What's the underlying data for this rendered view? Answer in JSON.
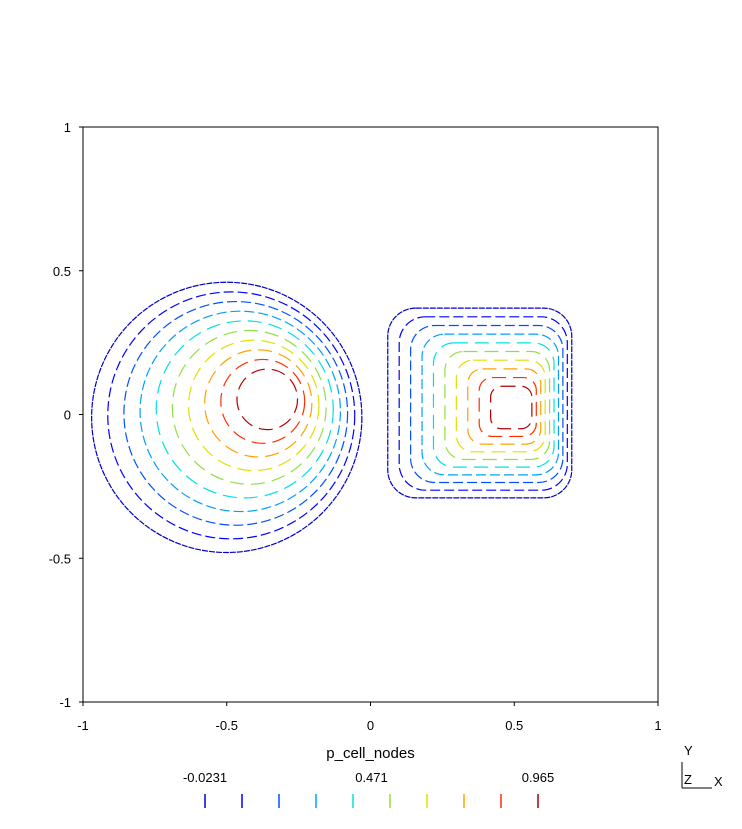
{
  "chart_data": {
    "type": "contour",
    "title": "",
    "xlim": [
      -1,
      1
    ],
    "ylim": [
      -1,
      1
    ],
    "x_ticks": [
      "-1",
      "-0.5",
      "0",
      "0.5",
      "1"
    ],
    "y_ticks": [
      "1",
      "0.5",
      "0",
      "-0.5",
      "-1"
    ],
    "grid": false,
    "field_name": "p_cell_nodes",
    "contour_levels": [
      -0.0231,
      0.0867,
      0.1965,
      0.3062,
      0.416,
      0.526,
      0.636,
      0.745,
      0.855,
      0.965
    ],
    "level_colors": [
      "#0000c8",
      "#0000ff",
      "#0050ff",
      "#00a0ff",
      "#00e0e0",
      "#90e040",
      "#e0e000",
      "#ffa000",
      "#ff3000",
      "#b00000"
    ],
    "legend": {
      "title": "p_cell_nodes",
      "labels": [
        "-0.0231",
        "0.471",
        "0.965"
      ],
      "placement": "bottom"
    },
    "axes_triad": {
      "vertical": "Y",
      "out": "Z",
      "horizontal": "X"
    },
    "blobs": [
      {
        "name": "left",
        "shape": "disc",
        "center": [
          -0.5,
          -0.01
        ],
        "radius_x": 0.47,
        "radius_y": 0.47
      },
      {
        "name": "right",
        "shape": "rounded-square",
        "center": [
          0.38,
          0.04
        ],
        "half_width_x": 0.32,
        "half_width_y": 0.33
      }
    ]
  }
}
